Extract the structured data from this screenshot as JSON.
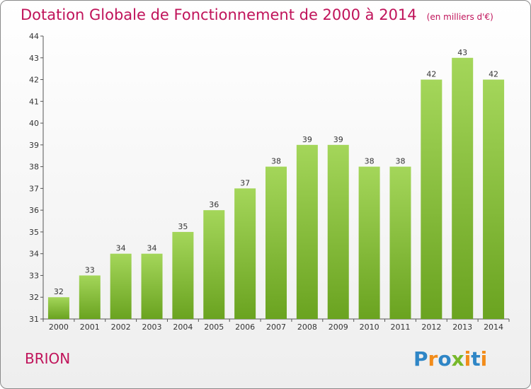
{
  "title": "Dotation Globale de Fonctionnement de 2000 à 2014",
  "unit_note": "(en milliers d'€)",
  "commune": "BRION",
  "logo": "Proxiti",
  "colors": {
    "title": "#c0135a",
    "bar_light": "#a4d65a",
    "bar_dark": "#6aa320",
    "logo_blue": "#2f86c6",
    "logo_orange": "#f28c1a",
    "logo_green": "#77b82a"
  },
  "chart_data": {
    "type": "bar",
    "title": "Dotation Globale de Fonctionnement de 2000 à 2014",
    "subtitle": "(en milliers d'€)",
    "xlabel": "",
    "ylabel": "",
    "categories": [
      "2000",
      "2001",
      "2002",
      "2003",
      "2004",
      "2005",
      "2006",
      "2007",
      "2008",
      "2009",
      "2010",
      "2011",
      "2012",
      "2013",
      "2014"
    ],
    "values": [
      32,
      33,
      34,
      34,
      35,
      36,
      37,
      38,
      39,
      39,
      38,
      38,
      42,
      43,
      42
    ],
    "ylim": [
      31,
      44
    ],
    "yticks": [
      31,
      32,
      33,
      34,
      35,
      36,
      37,
      38,
      39,
      40,
      41,
      42,
      43,
      44
    ],
    "grid": false,
    "data_labels": true
  }
}
